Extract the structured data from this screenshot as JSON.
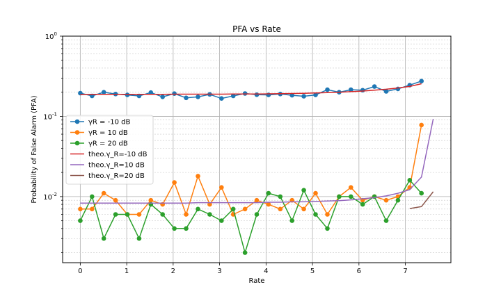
{
  "chart_data": {
    "type": "line",
    "title": "PFA vs Rate",
    "xlabel": "Rate",
    "ylabel": "Probability of False Alarm (PFA)",
    "yscale": "log",
    "xlim": [
      -0.38,
      7.98
    ],
    "ylim": [
      0.0015,
      1
    ],
    "xticks": [
      0,
      1,
      2,
      3,
      4,
      5,
      6,
      7
    ],
    "xtick_labels": [
      "0",
      "1",
      "2",
      "3",
      "4",
      "5",
      "6",
      "7"
    ],
    "yticks": [
      0.01,
      0.1,
      1
    ],
    "ytick_labels": [
      "10^-2",
      "10^-1",
      "10^0"
    ],
    "grid": "major and minor",
    "legend_position": "center-left",
    "x": [
      0.0,
      0.2533,
      0.5067,
      0.76,
      1.0133,
      1.2667,
      1.52,
      1.7733,
      2.0267,
      2.28,
      2.5333,
      2.7867,
      3.04,
      3.2933,
      3.5467,
      3.8,
      4.0533,
      4.3067,
      4.56,
      4.8133,
      5.0667,
      5.32,
      5.5733,
      5.8267,
      6.08,
      6.3333,
      6.5867,
      6.84,
      7.0933,
      7.3467,
      7.6
    ],
    "series": [
      {
        "name": "γR = -10 dB",
        "style": "line-marker",
        "color": "#1f77b4",
        "values": [
          0.195,
          0.18,
          0.2,
          0.19,
          0.185,
          0.18,
          0.198,
          0.175,
          0.192,
          0.17,
          0.175,
          0.188,
          0.167,
          0.18,
          0.193,
          0.186,
          0.185,
          0.19,
          0.183,
          0.178,
          0.185,
          0.215,
          0.2,
          0.215,
          0.212,
          0.235,
          0.205,
          0.22,
          0.245,
          0.275,
          null
        ]
      },
      {
        "name": "γR = 10 dB",
        "style": "line-marker",
        "color": "#ff7f0e",
        "values": [
          0.007,
          0.007,
          0.011,
          0.009,
          0.006,
          0.006,
          0.009,
          0.008,
          0.015,
          0.006,
          0.018,
          0.008,
          0.013,
          0.006,
          0.007,
          0.009,
          0.008,
          0.007,
          0.009,
          0.007,
          0.011,
          0.006,
          0.01,
          0.013,
          0.009,
          0.01,
          0.009,
          0.01,
          0.013,
          0.078,
          null
        ]
      },
      {
        "name": "γR = 20 dB",
        "style": "line-marker",
        "color": "#2ca02c",
        "values": [
          0.005,
          0.01,
          0.003,
          0.006,
          0.006,
          0.003,
          0.008,
          0.006,
          0.004,
          0.004,
          0.007,
          0.006,
          0.005,
          0.007,
          0.002,
          0.006,
          0.011,
          0.01,
          0.005,
          0.012,
          0.006,
          0.004,
          0.01,
          0.01,
          0.008,
          0.01,
          0.005,
          0.009,
          0.016,
          0.011,
          null
        ]
      },
      {
        "name": "theo.γ_R=-10 dB",
        "style": "line",
        "color": "#d62728",
        "values": [
          0.187,
          0.188,
          0.188,
          0.188,
          0.188,
          0.188,
          0.188,
          0.188,
          0.189,
          0.189,
          0.189,
          0.189,
          0.189,
          0.19,
          0.19,
          0.19,
          0.191,
          0.192,
          0.193,
          0.194,
          0.196,
          0.198,
          0.2,
          0.203,
          0.207,
          0.212,
          0.218,
          0.226,
          0.236,
          0.255,
          null
        ]
      },
      {
        "name": "theo.γ_R=10 dB",
        "style": "line",
        "color": "#9467bd",
        "values": [
          0.0083,
          0.0083,
          0.0083,
          0.0083,
          0.0083,
          0.0083,
          0.0083,
          0.0083,
          0.0083,
          0.0083,
          0.0084,
          0.0084,
          0.0084,
          0.0084,
          0.0084,
          0.0084,
          0.0085,
          0.0085,
          0.0086,
          0.0086,
          0.0087,
          0.0088,
          0.0089,
          0.0091,
          0.0094,
          0.0097,
          0.0102,
          0.011,
          0.0122,
          0.0175,
          0.093
        ]
      },
      {
        "name": "theo.γ_R=20 dB",
        "style": "line",
        "color": "#8c564b",
        "values": [
          null,
          null,
          null,
          null,
          null,
          null,
          null,
          null,
          null,
          null,
          null,
          null,
          null,
          null,
          null,
          null,
          null,
          null,
          null,
          null,
          null,
          null,
          null,
          null,
          null,
          null,
          null,
          null,
          0.0071,
          0.0075,
          0.0115
        ]
      }
    ]
  }
}
